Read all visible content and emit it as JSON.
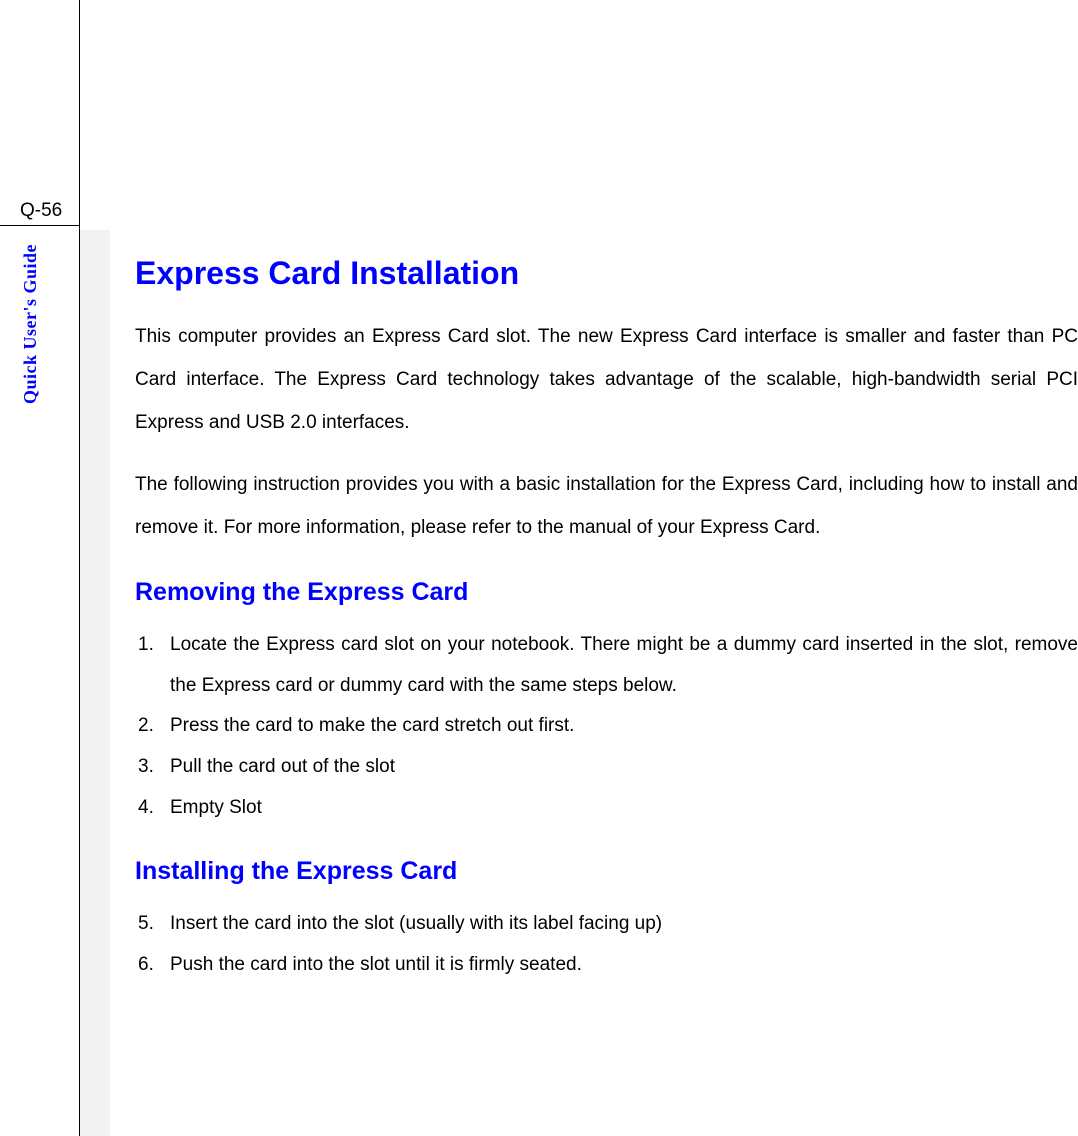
{
  "page_number": "Q-56",
  "sidebar_label": "Quick User's Guide",
  "main_heading": "Express Card Installation",
  "paragraphs": {
    "intro1": "This computer provides an Express Card slot.  The new Express Card interface is smaller and faster than PC Card interface.  The Express Card technology takes advantage of the scalable, high-bandwidth serial PCI Express and USB 2.0 interfaces.",
    "intro2": "The following instruction provides you with a basic installation for the Express Card, including how to install and remove it.  For more information, please refer to the manual of your Express Card."
  },
  "sections": {
    "removing": {
      "heading": "Removing the Express Card",
      "items": [
        {
          "num": "1.",
          "text": "Locate the Express card slot on your notebook.  There might be a dummy card inserted in the slot, remove the Express card or dummy card with the same steps below."
        },
        {
          "num": "2.",
          "text": "Press the card to make the card stretch out first."
        },
        {
          "num": "3.",
          "text": "Pull the card out of the slot"
        },
        {
          "num": "4.",
          "text": "Empty Slot"
        }
      ]
    },
    "installing": {
      "heading": "Installing the Express Card",
      "items": [
        {
          "num": "5.",
          "text": "Insert the card into the slot (usually with its label facing up)"
        },
        {
          "num": "6.",
          "text": "Push the card into the slot until it is firmly seated."
        }
      ]
    }
  },
  "colors": {
    "heading_blue": "#0000ff",
    "text_black": "#000000",
    "gray_bar": "#f2f2f2",
    "background": "#ffffff"
  },
  "typography": {
    "main_heading_size": 32,
    "sub_heading_size": 25,
    "body_size": 19,
    "sidebar_size": 18
  }
}
